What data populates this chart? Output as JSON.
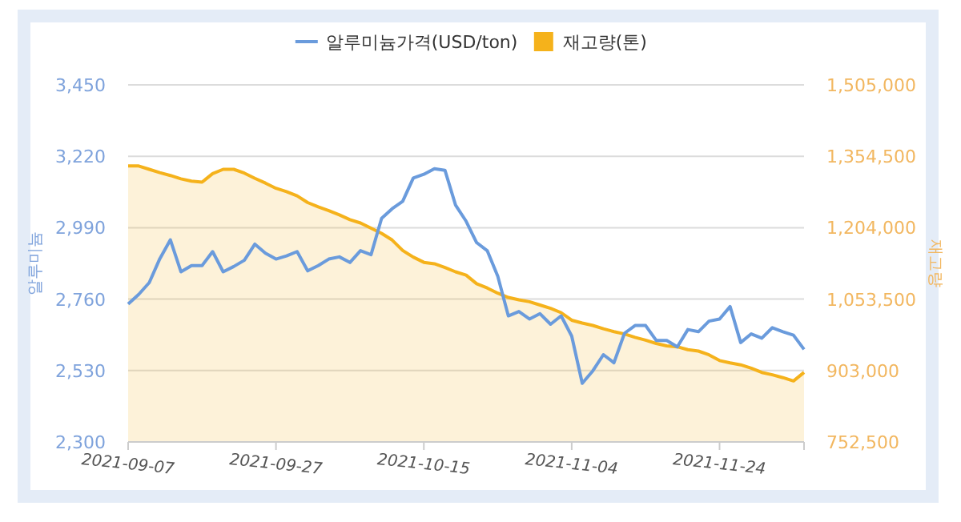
{
  "chart_data": {
    "type": "line",
    "categories": [
      "2021-09-07",
      null,
      null,
      null,
      null,
      null,
      null,
      null,
      null,
      null,
      null,
      null,
      null,
      null,
      "2021-09-27",
      null,
      null,
      null,
      null,
      null,
      null,
      null,
      null,
      null,
      null,
      null,
      null,
      null,
      "2021-10-15",
      null,
      null,
      null,
      null,
      null,
      null,
      null,
      null,
      null,
      null,
      null,
      null,
      null,
      "2021-11-04",
      null,
      null,
      null,
      null,
      null,
      null,
      null,
      null,
      null,
      null,
      null,
      null,
      null,
      "2021-11-24",
      null,
      null,
      null,
      null,
      null,
      null,
      null,
      null
    ],
    "ylabel": "알루미늄",
    "y2label": "재고량",
    "ylim": [
      2300,
      3450
    ],
    "yticks": [
      {
        "value": 2300,
        "label": "2,300"
      },
      {
        "value": 2530,
        "label": "2,530"
      },
      {
        "value": 2760,
        "label": "2,760"
      },
      {
        "value": 2990,
        "label": "2,990"
      },
      {
        "value": 3220,
        "label": "3,220"
      },
      {
        "value": 3450,
        "label": "3,450"
      }
    ],
    "y2lim": [
      752500,
      1505000
    ],
    "y2ticks": [
      {
        "value": 752500,
        "label": "752,500"
      },
      {
        "value": 903000,
        "label": "903,000"
      },
      {
        "value": 1053500,
        "label": "1,053,500"
      },
      {
        "value": 1204000,
        "label": "1,204,000"
      },
      {
        "value": 1354500,
        "label": "1,354,500"
      },
      {
        "value": 1505000,
        "label": "1,505,000"
      }
    ],
    "grid": "y",
    "legend": "top",
    "series": [
      {
        "name": "재고량(톤)",
        "type": "area",
        "axis": "y2",
        "color": "#f5b21b",
        "values": [
          1334000,
          1334000,
          1327000,
          1320000,
          1314000,
          1307000,
          1302000,
          1300000,
          1318000,
          1327000,
          1327000,
          1319000,
          1308000,
          1298000,
          1287000,
          1280000,
          1271000,
          1257000,
          1248000,
          1240000,
          1231000,
          1221000,
          1214000,
          1203000,
          1192000,
          1178000,
          1156000,
          1142000,
          1131000,
          1128000,
          1120000,
          1111000,
          1104000,
          1086000,
          1077000,
          1066000,
          1057000,
          1052000,
          1048000,
          1041000,
          1034000,
          1025000,
          1009000,
          1003000,
          998000,
          991000,
          985000,
          980000,
          973000,
          967000,
          960000,
          955000,
          953000,
          947000,
          944000,
          936000,
          924000,
          919000,
          915000,
          908000,
          899000,
          894000,
          888000,
          881000,
          899000
        ]
      },
      {
        "name": "알루미늄가격(USD/ton)",
        "color": "#6a9bdc",
        "values": [
          2744,
          2775,
          2813,
          2890,
          2951,
          2848,
          2868,
          2868,
          2913,
          2848,
          2865,
          2885,
          2937,
          2908,
          2889,
          2899,
          2913,
          2851,
          2868,
          2889,
          2896,
          2878,
          2916,
          2903,
          3020,
          3051,
          3075,
          3150,
          3162,
          3180,
          3175,
          3063,
          3011,
          2942,
          2916,
          2834,
          2706,
          2720,
          2696,
          2713,
          2679,
          2706,
          2641,
          2489,
          2529,
          2581,
          2555,
          2650,
          2675,
          2675,
          2627,
          2627,
          2606,
          2662,
          2655,
          2689,
          2696,
          2736,
          2620,
          2648,
          2634,
          2668,
          2655,
          2644,
          2598
        ]
      }
    ]
  }
}
